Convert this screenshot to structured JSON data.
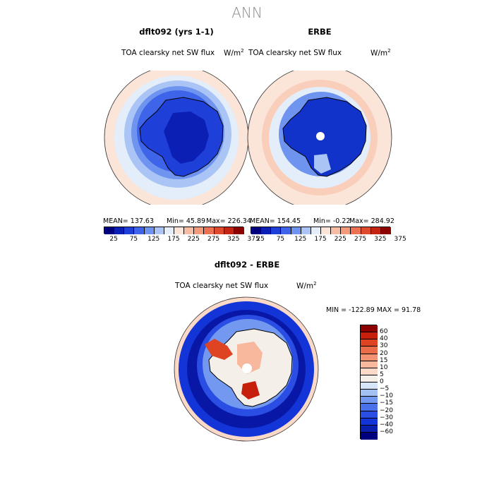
{
  "figure": {
    "title": "ANN"
  },
  "panels": [
    {
      "title": "dflt092 (yrs 1-1)",
      "variable": "TOA clearsky net SW flux",
      "units": "W/m",
      "units_exp": "2",
      "mean_label": "MEAN= 137.63",
      "min_label": "Min=  45.89",
      "max_label": "Max= 226.34"
    },
    {
      "title": "ERBE",
      "variable": "TOA clearsky net SW flux",
      "units": "W/m",
      "units_exp": "2",
      "mean_label": "MEAN= 154.45",
      "min_label": "Min=  -0.22",
      "max_label": "Max= 284.92"
    },
    {
      "title": "dflt092 - ERBE",
      "variable": "TOA clearsky net SW flux",
      "units": "W/m",
      "units_exp": "2",
      "minmax_label": "MIN = -122.89  MAX =  91.78"
    }
  ],
  "colors": {
    "abs_levels": [
      "#00007f",
      "#0b1fb5",
      "#1f3fd9",
      "#3e64ea",
      "#6f94f0",
      "#a9c4f5",
      "#e4eefb",
      "#fbe4d8",
      "#f7bca3",
      "#f39a7b",
      "#ec7152",
      "#dd4a2d",
      "#c42414",
      "#8c0000"
    ],
    "diff_levels": [
      "#00007f",
      "#0a1fae",
      "#1334d6",
      "#2a4ee3",
      "#4a70ea",
      "#7298f0",
      "#a4c1f4",
      "#d6e5f9",
      "#f4efe9",
      "#fbd9c8",
      "#f7b89d",
      "#f19373",
      "#ea6b47",
      "#de4322",
      "#c61f0c",
      "#8c0000"
    ],
    "land_abs": "#1233c9",
    "continent_dark": "#0a1a9e",
    "outline": "#000000"
  },
  "chart_data": [
    {
      "type": "heatmap",
      "title": "dflt092 (yrs 1-1)",
      "subtitle": "TOA clearsky net SW flux",
      "units": "W/m2",
      "projection": "polar stereographic (south pole)",
      "mean": 137.63,
      "min": 45.89,
      "max": 226.34,
      "colorbar": {
        "levels": [
          25,
          50,
          75,
          100,
          125,
          150,
          175,
          200,
          225,
          250,
          275,
          300,
          325,
          350,
          375
        ],
        "tick_labels": [
          "25",
          "75",
          "125",
          "175",
          "225",
          "275",
          "325",
          "375"
        ]
      }
    },
    {
      "type": "heatmap",
      "title": "ERBE",
      "subtitle": "TOA clearsky net SW flux",
      "units": "W/m2",
      "projection": "polar stereographic (south pole)",
      "mean": 154.45,
      "min": -0.22,
      "max": 284.92,
      "colorbar": {
        "levels": [
          25,
          50,
          75,
          100,
          125,
          150,
          175,
          200,
          225,
          250,
          275,
          300,
          325,
          350,
          375
        ],
        "tick_labels": [
          "25",
          "75",
          "125",
          "175",
          "225",
          "275",
          "325",
          "375"
        ]
      }
    },
    {
      "type": "heatmap",
      "title": "dflt092 - ERBE",
      "subtitle": "TOA clearsky net SW flux",
      "units": "W/m2",
      "projection": "polar stereographic (south pole)",
      "min": -122.89,
      "max": 91.78,
      "colorbar": {
        "levels": [
          -60,
          -40,
          -30,
          -20,
          -15,
          -10,
          -5,
          0,
          5,
          10,
          15,
          20,
          30,
          40,
          60
        ],
        "tick_labels": [
          "60",
          "40",
          "30",
          "20",
          "15",
          "10",
          "5",
          "0",
          "−5",
          "−10",
          "−15",
          "−20",
          "−30",
          "−40",
          "−60"
        ]
      }
    }
  ]
}
